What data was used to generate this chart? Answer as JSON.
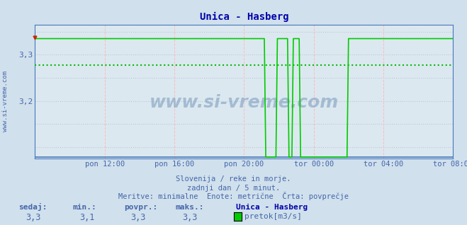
{
  "title": "Unica - Hasberg",
  "bg_color": "#d0e0ec",
  "plot_bg_color": "#dce8f0",
  "line_color": "#00cc00",
  "avg_line_color": "#00bb00",
  "axis_color": "#4477bb",
  "grid_color_h": "#b8c8d8",
  "grid_color_v": "#ffbbbb",
  "text_color": "#4466aa",
  "title_color": "#0000aa",
  "ylabel_values": [
    3.2,
    3.3
  ],
  "ylim": [
    3.075,
    3.365
  ],
  "xlim": [
    0,
    288
  ],
  "x_tick_positions": [
    0,
    48,
    96,
    144,
    192,
    240,
    288
  ],
  "x_tick_labels": [
    "",
    "pon 12:00",
    "pon 16:00",
    "pon 20:00",
    "tor 00:00",
    "tor 04:00",
    "tor 08:00"
  ],
  "avg_value": 3.278,
  "high_value": 3.335,
  "bottom_value": 3.078,
  "drop_x": 158,
  "spike1_start": 167,
  "spike1_end": 175,
  "spike2_start": 178,
  "spike2_end": 183,
  "resume_x": 216,
  "subtitle1": "Slovenija / reke in morje.",
  "subtitle2": "zadnji dan / 5 minut.",
  "subtitle3": "Meritve: minimalne  Enote: metrične  Črta: povprečje",
  "legend_label": "pretok[m3/s]",
  "stat_labels": [
    "sedaj:",
    "min.:",
    "povpr.:",
    "maks.:"
  ],
  "stat_values": [
    "3,3",
    "3,1",
    "3,3",
    "3,3"
  ],
  "series_name": "Unica - Hasberg",
  "left_text": "www.si-vreme.com",
  "watermark": "www.si-vreme.com"
}
